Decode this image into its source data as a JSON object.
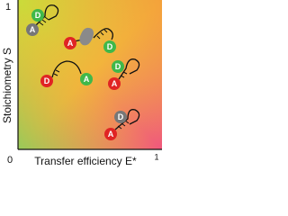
{
  "axes": {
    "y_label": "Stoichiometry S",
    "x_label": "Transfer efficiency E*",
    "y_max": "1",
    "origin": "0",
    "x_max": "1"
  },
  "nodes": [
    {
      "label": "D"
    },
    {
      "label": "A"
    },
    {
      "label": "A"
    },
    {
      "label": "D"
    },
    {
      "label": "D"
    },
    {
      "label": "A"
    },
    {
      "label": "D"
    },
    {
      "label": "A"
    },
    {
      "label": "D"
    },
    {
      "label": "A"
    }
  ]
}
